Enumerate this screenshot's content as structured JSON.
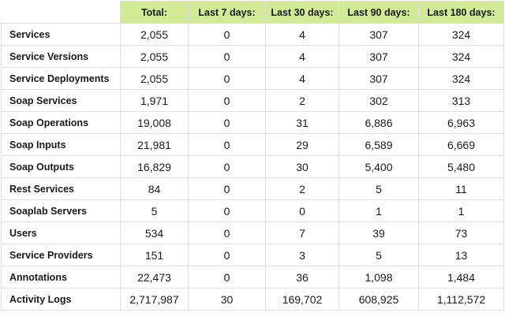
{
  "table": {
    "headers": [
      "",
      "Total:",
      "Last 7 days:",
      "Last 30 days:",
      "Last 90 days:",
      "Last 180 days:"
    ],
    "rows": [
      {
        "label": "Services",
        "values": [
          "2,055",
          "0",
          "4",
          "307",
          "324"
        ]
      },
      {
        "label": "Service Versions",
        "values": [
          "2,055",
          "0",
          "4",
          "307",
          "324"
        ]
      },
      {
        "label": "Service Deployments",
        "values": [
          "2,055",
          "0",
          "4",
          "307",
          "324"
        ]
      },
      {
        "label": "Soap Services",
        "values": [
          "1,971",
          "0",
          "2",
          "302",
          "313"
        ]
      },
      {
        "label": "Soap Operations",
        "values": [
          "19,008",
          "0",
          "31",
          "6,886",
          "6,963"
        ]
      },
      {
        "label": "Soap Inputs",
        "values": [
          "21,981",
          "0",
          "29",
          "6,589",
          "6,669"
        ]
      },
      {
        "label": "Soap Outputs",
        "values": [
          "16,829",
          "0",
          "30",
          "5,400",
          "5,480"
        ]
      },
      {
        "label": "Rest Services",
        "values": [
          "84",
          "0",
          "2",
          "5",
          "11"
        ]
      },
      {
        "label": "Soaplab Servers",
        "values": [
          "5",
          "0",
          "0",
          "1",
          "1"
        ]
      },
      {
        "label": "Users",
        "values": [
          "534",
          "0",
          "7",
          "39",
          "73"
        ]
      },
      {
        "label": "Service Providers",
        "values": [
          "151",
          "0",
          "3",
          "5",
          "13"
        ]
      },
      {
        "label": "Annotations",
        "values": [
          "22,473",
          "0",
          "36",
          "1,098",
          "1,484"
        ]
      },
      {
        "label": "Activity Logs",
        "values": [
          "2,717,987",
          "30",
          "169,702",
          "608,925",
          "1,112,572"
        ]
      }
    ]
  },
  "colors": {
    "header_bg": "#d2ea95",
    "border": "#dedede",
    "text": "#1a1a1a"
  }
}
